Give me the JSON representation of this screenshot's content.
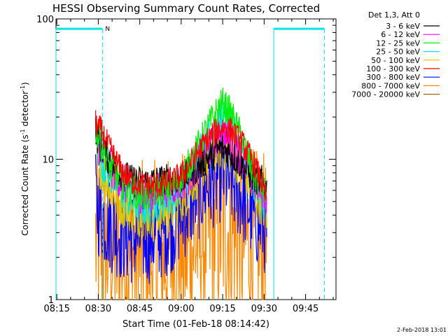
{
  "chart_data": {
    "type": "line",
    "title": "HESSI Observing Summary Count Rates, Corrected",
    "xlabel": "Start Time (01-Feb-18 08:14:42)",
    "ylabel_main": "Corrected Count Rate (s",
    "ylabel_sup1": "-1",
    "ylabel_mid": " detector",
    "ylabel_sup2": "-1",
    "ylabel_end": ")",
    "yscale": "log",
    "ylim": [
      1,
      100
    ],
    "xlim": [
      "08:14:42",
      "09:56:00"
    ],
    "x_ticks": [
      "08:15",
      "08:30",
      "08:45",
      "09:00",
      "09:15",
      "09:30",
      "09:45"
    ],
    "x_tick_minutes": [
      15,
      30,
      45,
      60,
      75,
      90,
      105
    ],
    "y_ticks": [
      "1",
      "10",
      "100"
    ],
    "y_tick_values": [
      1,
      10,
      100
    ],
    "legend_header": "Det 1,3, Att 0",
    "legend_position": "right",
    "series": [
      {
        "name": "3 - 6 keV",
        "color": "#000000",
        "t": [
          29,
          31,
          34,
          38,
          42,
          47,
          52,
          57,
          61,
          65,
          69,
          73,
          75,
          78,
          82,
          86,
          89,
          91
        ],
        "v": [
          16,
          12,
          10,
          8,
          7,
          6.8,
          7,
          7.2,
          7.5,
          8.5,
          10,
          11.5,
          12,
          11,
          9,
          7.5,
          7,
          6
        ]
      },
      {
        "name": "6 - 12 keV",
        "color": "#ff00ff",
        "t": [
          29,
          31,
          34,
          38,
          42,
          47,
          52,
          57,
          61,
          65,
          69,
          73,
          75,
          78,
          82,
          86,
          89,
          91
        ],
        "v": [
          15,
          11,
          9,
          7,
          6,
          5.5,
          6,
          6.5,
          7,
          8.5,
          11,
          14,
          15,
          13,
          10,
          7,
          6,
          5.5
        ]
      },
      {
        "name": "12 - 25 keV",
        "color": "#00ee00",
        "t": [
          29,
          31,
          34,
          38,
          42,
          47,
          52,
          57,
          61,
          65,
          69,
          73,
          75,
          78,
          82,
          86,
          89,
          91
        ],
        "v": [
          17,
          13,
          9,
          7,
          6,
          5.5,
          6,
          6.5,
          8,
          11,
          16,
          22,
          25,
          21,
          14,
          8,
          6.5,
          5.5
        ]
      },
      {
        "name": "25 - 50 keV",
        "color": "#00e5e5",
        "t": [
          29,
          31,
          34,
          38,
          42,
          47,
          52,
          57,
          61,
          65,
          69,
          73,
          75,
          78,
          82,
          86,
          89,
          91
        ],
        "v": [
          14,
          10,
          8,
          6,
          5,
          4.5,
          5,
          5.5,
          7,
          10,
          14,
          18,
          20,
          17,
          12,
          7,
          5.5,
          4.5
        ]
      },
      {
        "name": "50 - 100 keV",
        "color": "#dcc800",
        "t": [
          29,
          31,
          34,
          38,
          42,
          47,
          52,
          57,
          61,
          65,
          69,
          73,
          75,
          78,
          82,
          86,
          89,
          91
        ],
        "v": [
          11,
          9,
          6.5,
          5,
          4.5,
          4,
          4.2,
          4.5,
          5.5,
          7.5,
          10,
          12,
          12.5,
          11.5,
          9,
          6,
          5,
          4.2
        ]
      },
      {
        "name": "100 - 300 keV",
        "color": "#ff0000",
        "t": [
          29,
          31,
          34,
          38,
          42,
          47,
          52,
          57,
          61,
          65,
          69,
          73,
          75,
          78,
          82,
          86,
          89,
          91
        ],
        "v": [
          18,
          16,
          12,
          8.5,
          7,
          6.5,
          6.5,
          7,
          8,
          10.5,
          13.5,
          16,
          17,
          16,
          13,
          9.5,
          7,
          5
        ]
      },
      {
        "name": "300 - 800 keV",
        "color": "#0000ff",
        "t": [
          29,
          31,
          34,
          38,
          42,
          47,
          52,
          57,
          61,
          65,
          69,
          73,
          75,
          78,
          82,
          86,
          89,
          91
        ],
        "v": [
          5,
          4,
          3.5,
          3,
          2.8,
          2.8,
          3,
          3.5,
          4.2,
          5.5,
          6.5,
          7.5,
          8,
          7,
          5.5,
          4,
          3.5,
          3.2
        ]
      },
      {
        "name": "800 - 7000 keV",
        "color": "#ff8800",
        "t": [
          29,
          31,
          34,
          38,
          42,
          47,
          52,
          57,
          61,
          65,
          69,
          73,
          75,
          78,
          82,
          86,
          89,
          91
        ],
        "v": [
          2.5,
          2.5,
          2.2,
          2,
          2,
          2,
          2,
          2.2,
          2.3,
          2.5,
          3,
          3.2,
          3.3,
          3,
          2.7,
          2.5,
          2.3,
          2.2
        ]
      },
      {
        "name": "7000 - 20000 keV",
        "color": "#a06400",
        "t": [],
        "v": []
      }
    ],
    "attenuator_top_segments": [
      {
        "start_min": 14.7,
        "end_min": 31.5,
        "label": "N"
      },
      {
        "start_min": 93.5,
        "end_min": 111.8,
        "label": ""
      }
    ],
    "attenuator_vlines_dashed": [
      31.5,
      111.8
    ],
    "attenuator_vlines_solid": [
      14.7,
      93.5
    ]
  },
  "footer_date": "2-Feb-2018 13:01"
}
